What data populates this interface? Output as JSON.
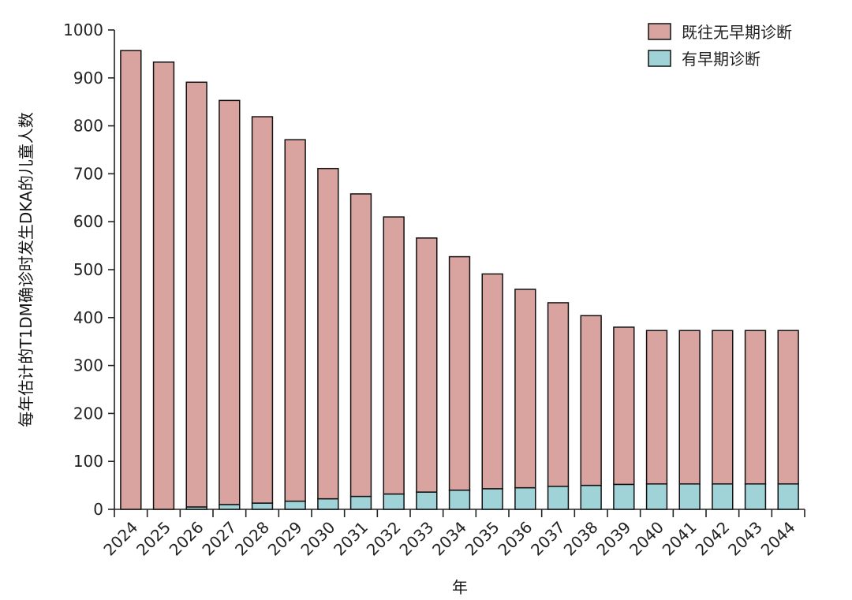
{
  "chart_data": {
    "type": "bar",
    "stacked": true,
    "title": "",
    "xlabel": "年",
    "ylabel": "每年估计的T1DM确诊时发生DKA的儿童人数",
    "ylim": [
      0,
      1000
    ],
    "yticks": [
      0,
      100,
      200,
      300,
      400,
      500,
      600,
      700,
      800,
      900,
      1000
    ],
    "categories": [
      "2024",
      "2025",
      "2026",
      "2027",
      "2028",
      "2029",
      "2030",
      "2031",
      "2032",
      "2033",
      "2034",
      "2035",
      "2036",
      "2037",
      "2038",
      "2039",
      "2040",
      "2041",
      "2042",
      "2043",
      "2044"
    ],
    "series": [
      {
        "name": "有早期诊断",
        "color": "#9fd3d8",
        "values": [
          0,
          0,
          5,
          10,
          13,
          17,
          22,
          27,
          32,
          36,
          40,
          43,
          45,
          48,
          50,
          52,
          53,
          53,
          53,
          53,
          53
        ]
      },
      {
        "name": "既往无早期诊断",
        "color": "#d9a3a0",
        "values": [
          957,
          933,
          886,
          843,
          806,
          754,
          689,
          631,
          578,
          530,
          487,
          448,
          414,
          383,
          354,
          328,
          320,
          320,
          320,
          320,
          320
        ]
      }
    ],
    "legend": {
      "position": "top-right",
      "items": [
        "既往无早期诊断",
        "有早期诊断"
      ]
    },
    "grid": false
  }
}
